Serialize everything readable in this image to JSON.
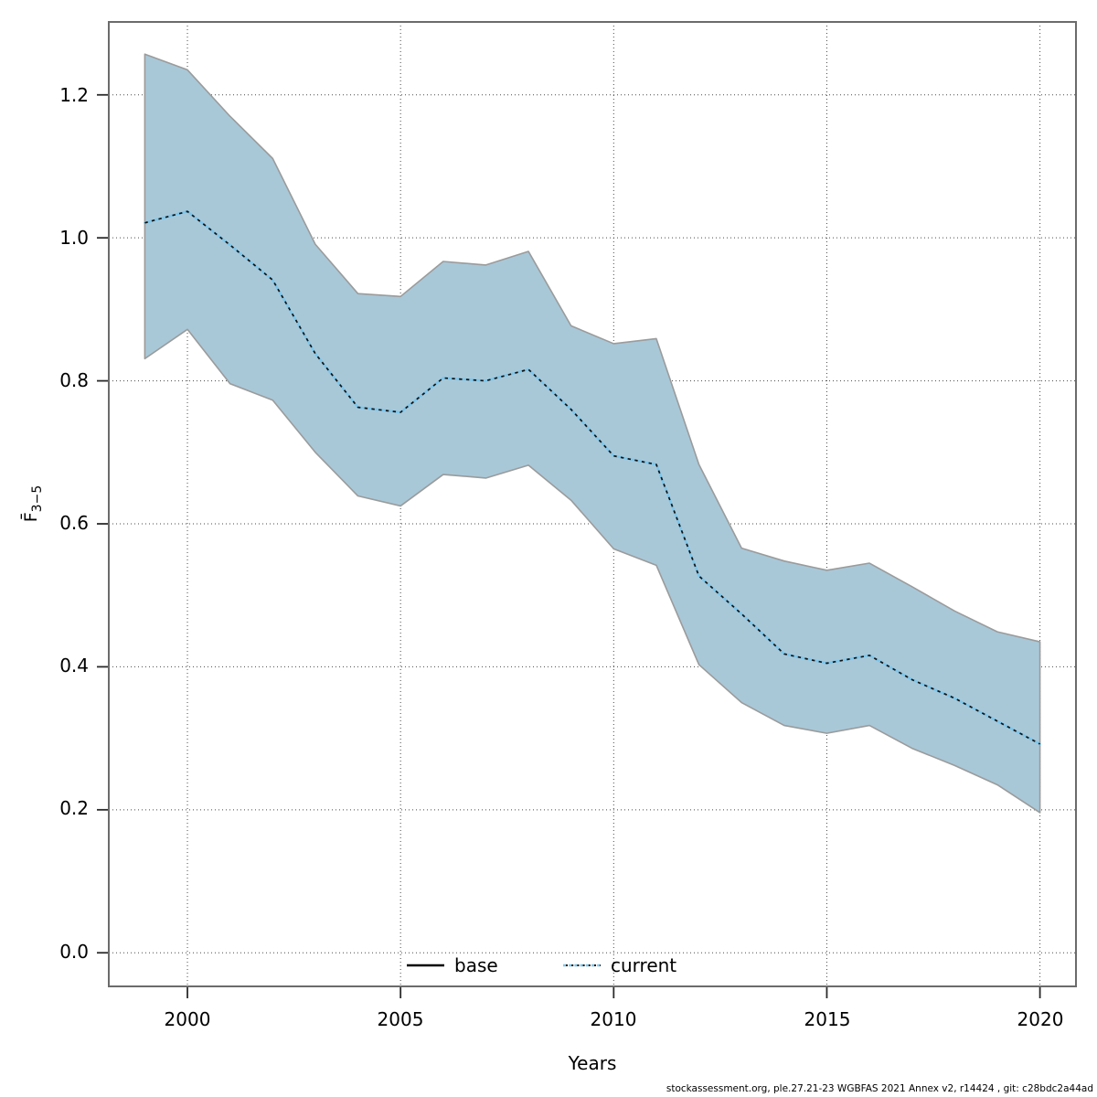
{
  "chart_data": {
    "type": "line",
    "title": "",
    "xlabel": "Years",
    "ylabel_main": "F̄",
    "ylabel_sub": "3−5",
    "x": [
      1999,
      2000,
      2001,
      2002,
      2003,
      2004,
      2005,
      2006,
      2007,
      2008,
      2009,
      2010,
      2011,
      2012,
      2013,
      2014,
      2015,
      2016,
      2017,
      2018,
      2019,
      2020
    ],
    "series": [
      {
        "name": "base",
        "style": "solid-black",
        "values": [
          1.021,
          1.037,
          0.99,
          0.941,
          0.838,
          0.763,
          0.756,
          0.804,
          0.8,
          0.816,
          0.76,
          0.695,
          0.683,
          0.527,
          0.474,
          0.418,
          0.405,
          0.416,
          0.382,
          0.356,
          0.324,
          0.292
        ]
      },
      {
        "name": "current",
        "style": "dotted-blue",
        "values": [
          1.021,
          1.037,
          0.99,
          0.941,
          0.838,
          0.763,
          0.756,
          0.804,
          0.8,
          0.816,
          0.76,
          0.695,
          0.683,
          0.527,
          0.474,
          0.418,
          0.405,
          0.416,
          0.382,
          0.356,
          0.324,
          0.292
        ]
      }
    ],
    "band": {
      "name": "confidence-interval",
      "upper": [
        1.257,
        1.235,
        1.17,
        1.111,
        0.991,
        0.922,
        0.918,
        0.967,
        0.962,
        0.981,
        0.877,
        0.852,
        0.859,
        0.683,
        0.566,
        0.548,
        0.535,
        0.545,
        0.512,
        0.478,
        0.449,
        0.435
      ],
      "lower": [
        0.831,
        0.872,
        0.796,
        0.773,
        0.7,
        0.639,
        0.625,
        0.669,
        0.664,
        0.682,
        0.633,
        0.565,
        0.542,
        0.403,
        0.35,
        0.318,
        0.307,
        0.318,
        0.286,
        0.262,
        0.235,
        0.196
      ]
    },
    "xlim": [
      1998.155,
      2020.845
    ],
    "ylim": [
      -0.047,
      1.302
    ],
    "xticks": [
      2000,
      2005,
      2010,
      2015,
      2020
    ],
    "xtick_labels": [
      "2000",
      "2005",
      "2010",
      "2015",
      "2020"
    ],
    "yticks": [
      0.0,
      0.2,
      0.4,
      0.6,
      0.8,
      1.0,
      1.2
    ],
    "ytick_labels": [
      "0.0",
      "0.2",
      "0.4",
      "0.6",
      "0.8",
      "1.0",
      "1.2"
    ],
    "grid": true,
    "legend_position": "bottom-center-inside",
    "legend": [
      "base",
      "current"
    ],
    "colors": {
      "band_fill": "#a8c8d8",
      "band_edge": "#9b9b9b",
      "base_line": "#000000",
      "current_line": "#7dc6eb",
      "current_dot": "#111111",
      "grid": "#4a4a4a",
      "box": "#6b6b6b",
      "tick": "#2b2b2b"
    }
  },
  "footer": {
    "text": "stockassessment.org, ple.27.21-23 WGBFAS 2021 Annex v2, r14424 , git: c28bdc2a44ad"
  }
}
